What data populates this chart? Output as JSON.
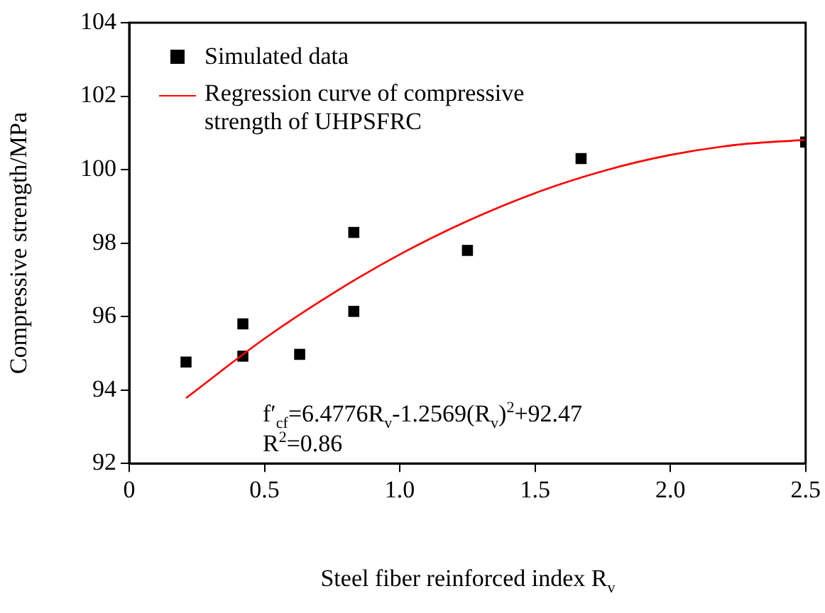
{
  "chart_data": {
    "type": "scatter",
    "xlabel": "Steel fiber reinforced index R$_{v}$",
    "ylabel": "Compressive strength/MPa",
    "series": [
      {
        "name": "Simulated data",
        "type": "scatter",
        "color": "#000000",
        "marker": "square",
        "x": [
          0.21,
          0.42,
          0.42,
          0.63,
          0.83,
          0.83,
          1.25,
          1.67,
          2.5
        ],
        "values": [
          94.76,
          95.8,
          94.92,
          94.97,
          98.29,
          96.14,
          97.8,
          100.3,
          100.75
        ]
      },
      {
        "name": "Regression curve of compressive strength of UHPSFRC",
        "type": "line",
        "color": "#ff0000",
        "marker": "none",
        "line_style": "solid",
        "x": [
          0.21,
          0.5,
          0.75,
          1.0,
          1.25,
          1.5,
          1.75,
          2.0,
          2.25,
          2.5
        ],
        "values": [
          93.78,
          95.4,
          96.62,
          97.69,
          98.6,
          99.36,
          99.96,
          100.4,
          100.68,
          100.81
        ]
      }
    ],
    "xlim": [
      0,
      2.5
    ],
    "xticks": [
      0,
      0.5,
      {
        "value": 1,
        "label": "1.0"
      },
      1.5,
      {
        "value": 2,
        "label": "2.0"
      },
      2.5
    ],
    "ylim": [
      92,
      104
    ],
    "yticks": [
      92,
      94,
      96,
      98,
      100,
      102,
      104
    ],
    "grid": false,
    "legend": "top left",
    "annotations": [
      "f′$_{cf}$=6.4776R$_{v}$-1.2569(R$_{v}$)$^{2}$+92.47",
      "R$^{2}$=0.86"
    ]
  }
}
